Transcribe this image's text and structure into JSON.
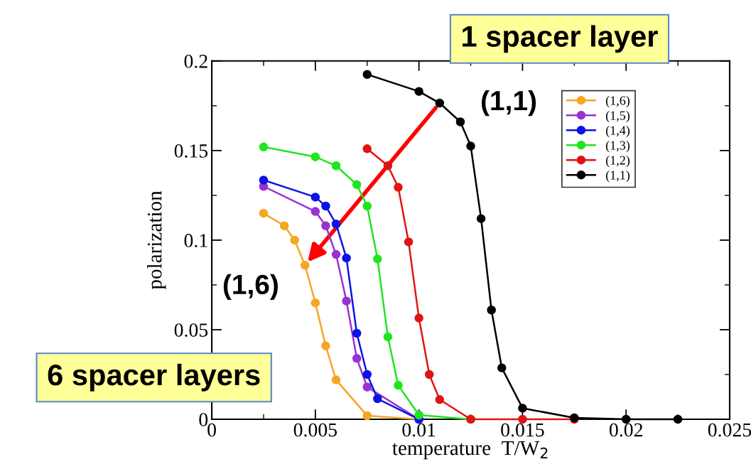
{
  "chart_data": {
    "type": "line",
    "xlabel": "temperature  T/W$_{2}$",
    "ylabel": "polarization",
    "xlim": [
      0,
      0.025
    ],
    "ylim": [
      0,
      0.2
    ],
    "xticks": [
      0,
      0.005,
      0.01,
      0.015,
      0.02,
      0.025
    ],
    "yticks": [
      0,
      0.05,
      0.1,
      0.15,
      0.2
    ],
    "grid": false,
    "legend": "top right",
    "marker": "circle",
    "line_style": "solid",
    "series": [
      {
        "name": "(1,6)",
        "color": "#f5a623",
        "x": [
          0.0025,
          0.0035,
          0.004,
          0.0045,
          0.005,
          0.0055,
          0.006,
          0.0075,
          0.01
        ],
        "values": [
          0.115,
          0.108,
          0.1,
          0.086,
          0.065,
          0.041,
          0.022,
          0.002,
          0
        ]
      },
      {
        "name": "(1,5)",
        "color": "#9b30d0",
        "x": [
          0.0025,
          0.005,
          0.0055,
          0.006,
          0.0065,
          0.007,
          0.0075,
          0.01
        ],
        "values": [
          0.13,
          0.116,
          0.108,
          0.092,
          0.066,
          0.034,
          0.018,
          0
        ]
      },
      {
        "name": "(1,4)",
        "color": "#0a14e6",
        "x": [
          0.0025,
          0.005,
          0.0055,
          0.006,
          0.0065,
          0.007,
          0.0075,
          0.008,
          0.01
        ],
        "values": [
          0.1335,
          0.124,
          0.119,
          0.109,
          0.09,
          0.048,
          0.025,
          0.0115,
          0
        ]
      },
      {
        "name": "(1,3)",
        "color": "#1ee61e",
        "x": [
          0.0025,
          0.005,
          0.006,
          0.007,
          0.0075,
          0.008,
          0.0085,
          0.009,
          0.01,
          0.0125
        ],
        "values": [
          0.152,
          0.1465,
          0.1415,
          0.131,
          0.119,
          0.0895,
          0.046,
          0.019,
          0.0024,
          0
        ]
      },
      {
        "name": "(1,2)",
        "color": "#e01414",
        "x": [
          0.0075,
          0.0085,
          0.009,
          0.0095,
          0.01,
          0.0105,
          0.011,
          0.0125,
          0.015,
          0.0175
        ],
        "values": [
          0.151,
          0.1415,
          0.1295,
          0.099,
          0.0565,
          0.025,
          0.011,
          0,
          0,
          0
        ]
      },
      {
        "name": "(1,1)",
        "color": "#000000",
        "x": [
          0.0075,
          0.01,
          0.011,
          0.012,
          0.0125,
          0.013,
          0.0135,
          0.014,
          0.015,
          0.0175,
          0.02,
          0.0225
        ],
        "values": [
          0.1925,
          0.183,
          0.1765,
          0.166,
          0.1525,
          0.112,
          0.061,
          0.0287,
          0.0062,
          0.0008,
          0,
          0
        ]
      }
    ],
    "annotations": [
      "1 spacer layer",
      "6 spacer layers",
      {
        "text": "(1,1)",
        "x": 0.011,
        "y": 0.1765
      },
      {
        "text": "(1,6)",
        "x": 0.0045,
        "y": 0.086
      }
    ]
  }
}
